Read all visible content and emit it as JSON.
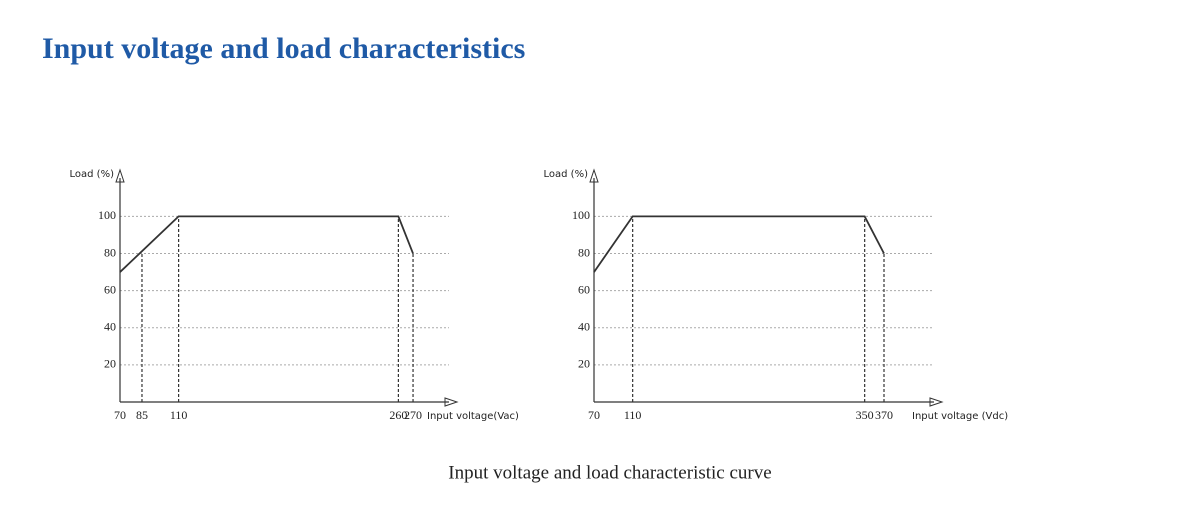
{
  "header": {
    "title": "Input voltage and load characteristics"
  },
  "caption": "Input voltage and load characteristic curve",
  "chart_data": [
    {
      "type": "line",
      "ylabel": "Load (%)",
      "xlabel": "Input voltage(Vac)",
      "x": [
        70,
        110,
        260,
        270
      ],
      "values": [
        70,
        100,
        100,
        80
      ],
      "color": "#333333",
      "xlim": [
        70,
        300
      ],
      "xticks": [
        70,
        85,
        110,
        260,
        270
      ],
      "ylim": [
        0,
        125
      ],
      "yticks": [
        20,
        40,
        60,
        80,
        100
      ],
      "grid": true
    },
    {
      "type": "line",
      "ylabel": "Load (%)",
      "xlabel": "Input voltage (Vdc)",
      "x": [
        70,
        110,
        350,
        370
      ],
      "values": [
        70,
        100,
        100,
        80
      ],
      "color": "#333333",
      "xlim": [
        70,
        430
      ],
      "xticks": [
        70,
        110,
        350,
        370
      ],
      "ylim": [
        0,
        125
      ],
      "yticks": [
        20,
        40,
        60,
        80,
        100
      ],
      "grid": true
    }
  ]
}
